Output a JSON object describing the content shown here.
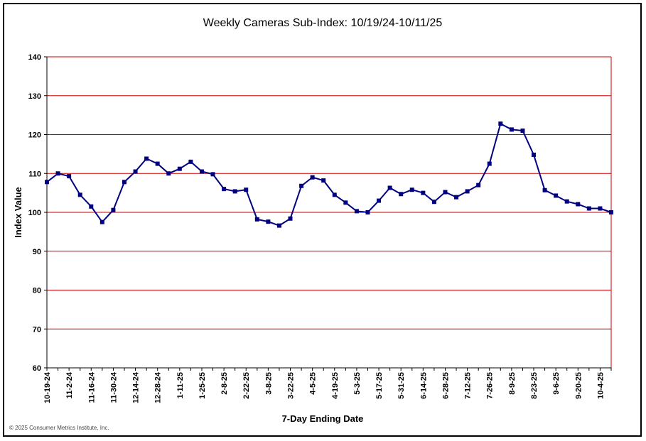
{
  "chart_data": {
    "type": "line",
    "title": "Weekly Cameras Sub-Index: 10/19/24-10/11/25",
    "xlabel": "7-Day Ending Date",
    "ylabel": "Index Value",
    "ylim": [
      60,
      140
    ],
    "yticks": [
      60,
      70,
      80,
      90,
      100,
      110,
      120,
      130,
      140
    ],
    "grid": true,
    "colors": {
      "line": "#000080",
      "marker": "#000080",
      "grid": "#cc0000",
      "plot_border": "#cc0000"
    },
    "xtick_labels": [
      "10-19-24",
      "11-2-24",
      "11-16-24",
      "11-30-24",
      "12-14-24",
      "12-28-24",
      "1-11-25",
      "1-25-25",
      "2-8-25",
      "2-22-25",
      "3-8-25",
      "3-22-25",
      "4-5-25",
      "4-19-25",
      "5-3-25",
      "5-17-25",
      "5-31-25",
      "6-14-25",
      "6-28-25",
      "7-12-25",
      "7-26-25",
      "8-9-25",
      "8-23-25",
      "9-6-25",
      "9-20-25",
      "10-4-25"
    ],
    "series": [
      {
        "values": [
          107.8,
          110.0,
          109.3,
          104.5,
          101.5,
          97.5,
          100.6,
          107.8,
          110.5,
          113.8,
          112.5,
          110.0,
          111.2,
          113.0,
          110.5,
          109.8,
          106.0,
          105.4,
          105.8,
          98.2,
          97.6,
          96.6,
          98.4,
          106.8,
          109.0,
          108.2,
          104.5,
          102.5,
          100.3,
          100.0,
          103.0,
          106.3,
          104.7,
          105.8,
          105.0,
          102.7,
          105.2,
          103.9,
          105.4,
          107.0,
          112.5,
          122.8,
          121.3,
          121.0,
          114.8,
          105.7,
          104.3,
          102.8,
          102.1,
          101.0,
          101.0,
          100.0
        ]
      }
    ]
  },
  "copyright": "© 2025 Consumer Metrics Institute, Inc."
}
